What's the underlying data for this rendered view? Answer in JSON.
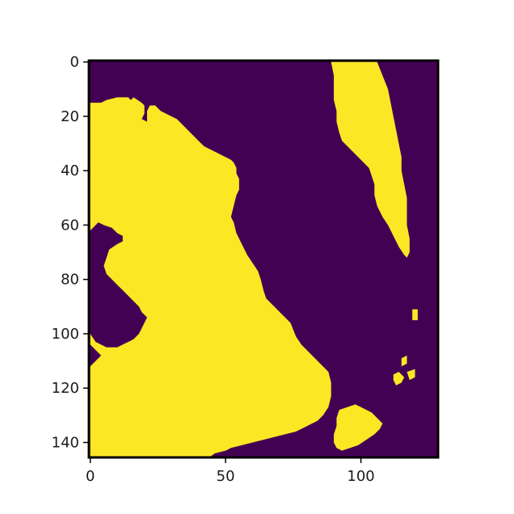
{
  "chart_data": {
    "type": "heatmap",
    "title": "",
    "xlabel": "",
    "ylabel": "",
    "xlim": [
      -0.5,
      128.5
    ],
    "ylim": [
      145.5,
      -0.5
    ],
    "x_ticks": [
      0,
      50,
      100
    ],
    "y_ticks": [
      0,
      20,
      40,
      60,
      80,
      100,
      120,
      140
    ],
    "x_tick_labels": [
      "0",
      "50",
      "100"
    ],
    "y_tick_labels": [
      "0",
      "20",
      "40",
      "60",
      "80",
      "100",
      "120",
      "140"
    ],
    "grid": false,
    "colormap": "viridis",
    "colors": {
      "low": "#440154",
      "high": "#fde725",
      "frame": "#000000"
    },
    "values": [
      0,
      1
    ],
    "regions": [
      {
        "value": 1,
        "name": "left-landmass",
        "polygon": [
          [
            0,
            15
          ],
          [
            4,
            15
          ],
          [
            6,
            14
          ],
          [
            10,
            13
          ],
          [
            14,
            13
          ],
          [
            15,
            14
          ],
          [
            16,
            13
          ],
          [
            19,
            15
          ],
          [
            20,
            16
          ],
          [
            20,
            19
          ],
          [
            19,
            21
          ],
          [
            21,
            22
          ],
          [
            21,
            18
          ],
          [
            22,
            16
          ],
          [
            24,
            16
          ],
          [
            26,
            18
          ],
          [
            28,
            19
          ],
          [
            30,
            20
          ],
          [
            32,
            21
          ],
          [
            34,
            23
          ],
          [
            36,
            25
          ],
          [
            38,
            27
          ],
          [
            40,
            29
          ],
          [
            42,
            31
          ],
          [
            44,
            32
          ],
          [
            46,
            33
          ],
          [
            48,
            34
          ],
          [
            50,
            35
          ],
          [
            52,
            36
          ],
          [
            53,
            37
          ],
          [
            54,
            39
          ],
          [
            54,
            41
          ],
          [
            55,
            43
          ],
          [
            55,
            47
          ],
          [
            54,
            49
          ],
          [
            53,
            53
          ],
          [
            52,
            57
          ],
          [
            53,
            59
          ],
          [
            54,
            63
          ],
          [
            56,
            67
          ],
          [
            58,
            71
          ],
          [
            60,
            74
          ],
          [
            62,
            77
          ],
          [
            63,
            80
          ],
          [
            64,
            84
          ],
          [
            65,
            87
          ],
          [
            67,
            89
          ],
          [
            69,
            91
          ],
          [
            71,
            93
          ],
          [
            74,
            96
          ],
          [
            76,
            101
          ],
          [
            78,
            104
          ],
          [
            80,
            106
          ],
          [
            82,
            108
          ],
          [
            84,
            110
          ],
          [
            86,
            112
          ],
          [
            88,
            114
          ],
          [
            89,
            118
          ],
          [
            89,
            123
          ],
          [
            88,
            127
          ],
          [
            86,
            130
          ],
          [
            84,
            132
          ],
          [
            82,
            133
          ],
          [
            80,
            134
          ],
          [
            76,
            136
          ],
          [
            72,
            137
          ],
          [
            68,
            138
          ],
          [
            64,
            139
          ],
          [
            60,
            140
          ],
          [
            56,
            141
          ],
          [
            52,
            142
          ],
          [
            50,
            143
          ],
          [
            46,
            144
          ],
          [
            44,
            145.5
          ],
          [
            0,
            145.5
          ],
          [
            0,
            112
          ],
          [
            2,
            110
          ],
          [
            4,
            108
          ],
          [
            0,
            104
          ],
          [
            0,
            100
          ],
          [
            2,
            103
          ],
          [
            6,
            105
          ],
          [
            10,
            105
          ],
          [
            12,
            104
          ],
          [
            14,
            103
          ],
          [
            16,
            102
          ],
          [
            18,
            100
          ],
          [
            20,
            96
          ],
          [
            21,
            94
          ],
          [
            19,
            92
          ],
          [
            18,
            90
          ],
          [
            16,
            88
          ],
          [
            14,
            86
          ],
          [
            12,
            84
          ],
          [
            10,
            82
          ],
          [
            8,
            80
          ],
          [
            6,
            78
          ],
          [
            5,
            75
          ],
          [
            6,
            72
          ],
          [
            7,
            69
          ],
          [
            10,
            67
          ],
          [
            12,
            66
          ],
          [
            12,
            64
          ],
          [
            10,
            63
          ],
          [
            8,
            61
          ],
          [
            5,
            60
          ],
          [
            3,
            59
          ],
          [
            0,
            62
          ]
        ]
      },
      {
        "value": 1,
        "name": "upper-right-strip",
        "polygon": [
          [
            89,
            0
          ],
          [
            106,
            0
          ],
          [
            108,
            5
          ],
          [
            110,
            10
          ],
          [
            111,
            15
          ],
          [
            112,
            20
          ],
          [
            113,
            25
          ],
          [
            114,
            30
          ],
          [
            115,
            35
          ],
          [
            115,
            40
          ],
          [
            116,
            45
          ],
          [
            117,
            50
          ],
          [
            117,
            55
          ],
          [
            117,
            60
          ],
          [
            118,
            65
          ],
          [
            118,
            70
          ],
          [
            117,
            72
          ],
          [
            116,
            71
          ],
          [
            114,
            68
          ],
          [
            112,
            64
          ],
          [
            110,
            60
          ],
          [
            108,
            57
          ],
          [
            106,
            53
          ],
          [
            105,
            49
          ],
          [
            105,
            45
          ],
          [
            104,
            42
          ],
          [
            103,
            39
          ],
          [
            101,
            37
          ],
          [
            99,
            35
          ],
          [
            97,
            33
          ],
          [
            95,
            31
          ],
          [
            93,
            29
          ],
          [
            92,
            26
          ],
          [
            91,
            22
          ],
          [
            91,
            18
          ],
          [
            90,
            14
          ],
          [
            90,
            10
          ],
          [
            90,
            5
          ]
        ]
      },
      {
        "value": 1,
        "name": "lower-right-islands",
        "polygon": [
          [
            92,
            128
          ],
          [
            95,
            127
          ],
          [
            98,
            126
          ],
          [
            100,
            127
          ],
          [
            102,
            128
          ],
          [
            104,
            129
          ],
          [
            106,
            131
          ],
          [
            108,
            133
          ],
          [
            107,
            135
          ],
          [
            105,
            137
          ],
          [
            102,
            139
          ],
          [
            99,
            141
          ],
          [
            96,
            142
          ],
          [
            93,
            143
          ],
          [
            91,
            142
          ],
          [
            90,
            140
          ],
          [
            90,
            137
          ],
          [
            91,
            134
          ],
          [
            91,
            131
          ]
        ]
      },
      {
        "value": 1,
        "name": "island-a",
        "polygon": [
          [
            112,
            115
          ],
          [
            114,
            114
          ],
          [
            116,
            116
          ],
          [
            115,
            118
          ],
          [
            113,
            119
          ],
          [
            112,
            117
          ]
        ]
      },
      {
        "value": 1,
        "name": "island-b",
        "polygon": [
          [
            117,
            114
          ],
          [
            120,
            113
          ],
          [
            120,
            116
          ],
          [
            118,
            117
          ]
        ]
      },
      {
        "value": 1,
        "name": "island-c",
        "polygon": [
          [
            115,
            109
          ],
          [
            117,
            108
          ],
          [
            117,
            111
          ],
          [
            115,
            112
          ]
        ]
      },
      {
        "value": 1,
        "name": "island-d",
        "polygon": [
          [
            119,
            91
          ],
          [
            121,
            91
          ],
          [
            121,
            95
          ],
          [
            119,
            95
          ]
        ]
      }
    ]
  }
}
